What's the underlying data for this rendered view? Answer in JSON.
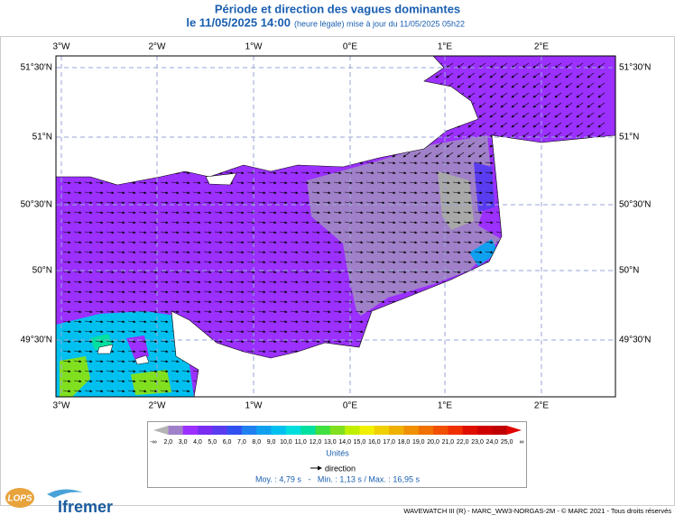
{
  "header": {
    "title": "Période et direction des vagues dominantes",
    "date": "le 11/05/2025 14:00",
    "update": "(heure légale) mise à jour du 11/05/2025 05h22"
  },
  "map": {
    "longitudes": [
      "3°W",
      "2°W",
      "1°W",
      "0°E",
      "1°E",
      "2°E"
    ],
    "latitudes": [
      "51°30'N",
      "51°N",
      "50°30'N",
      "50°N",
      "49°30'N"
    ]
  },
  "legend": {
    "labels": [
      "-∞",
      "2,0",
      "3,0",
      "4,0",
      "5,0",
      "6,0",
      "7,0",
      "8,0",
      "9,0",
      "10,0",
      "11,0",
      "12,0",
      "13,0",
      "14,0",
      "15,0",
      "16,0",
      "17,0",
      "18,0",
      "19,0",
      "20,0",
      "21,0",
      "22,0",
      "23,0",
      "24,0",
      "25,0",
      "∞"
    ],
    "colors": [
      "#b4b4b4",
      "#a080c8",
      "#9b30ff",
      "#7a2cf2",
      "#5a3cf0",
      "#3050f0",
      "#2080f0",
      "#10a0f0",
      "#00c0f0",
      "#00dede",
      "#00e0a0",
      "#40e040",
      "#80e020",
      "#c0f000",
      "#f0f000",
      "#f0d000",
      "#f0b000",
      "#f09000",
      "#f07000",
      "#f05000",
      "#f03000",
      "#e01000",
      "#d00000",
      "#c00000",
      "#e00000"
    ],
    "unit": "Unités",
    "direction": "direction",
    "stats": "Moy. : 4,79 s   -   Min. : 1,13 s / Max. : 16,95 s"
  },
  "footer": {
    "credit": "WAVEWATCH III (R) - MARC_WW3-NORGAS-2M - © MARC 2021 - Tous droits réservés",
    "logo1": "LOPS",
    "logo2": "Ifremer"
  }
}
